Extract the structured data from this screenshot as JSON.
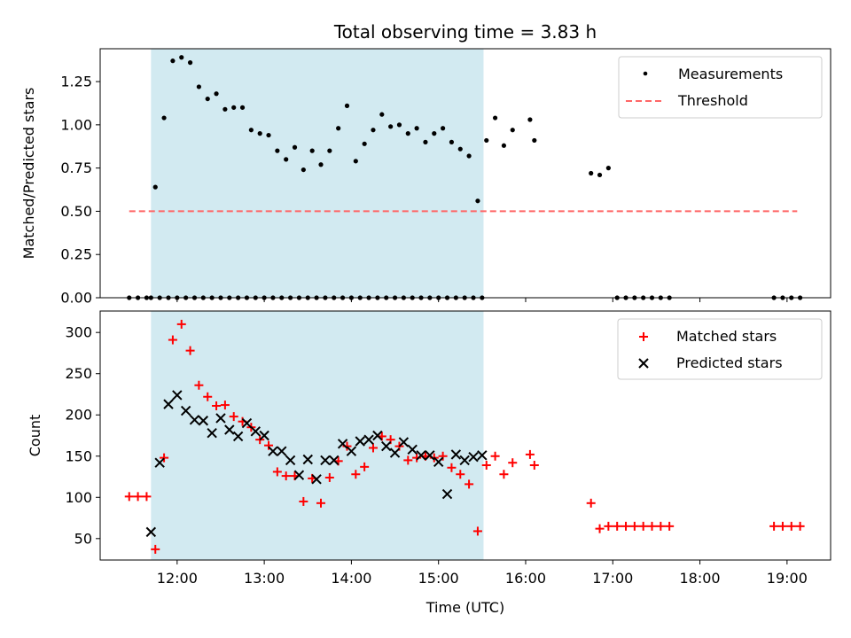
{
  "chart_data": {
    "type": "scatter",
    "title": "Total observing time = 3.83 h",
    "colors": {
      "span": "#add8e6",
      "measurements": "#000000",
      "threshold": "#ff6666",
      "matched": "#ff0000",
      "predicted": "#000000"
    },
    "shared_x": {
      "label": "Time (UTC)",
      "unit": "hours UTC",
      "range": [
        "11:07",
        "19:30"
      ],
      "ticks": [
        "12:00",
        "13:00",
        "14:00",
        "15:00",
        "16:00",
        "17:00",
        "18:00",
        "19:00"
      ],
      "highlight_span": [
        "11:42",
        "15:31"
      ]
    },
    "panels": [
      {
        "type": "scatter",
        "ylabel": "Matched/Predicted stars",
        "ylim": [
          0,
          1.44
        ],
        "yticks": [
          "0.00",
          "0.25",
          "0.50",
          "0.75",
          "1.00",
          "1.25"
        ],
        "legend_position": "upper right",
        "series": [
          {
            "name": "Measurements",
            "marker": "dot",
            "x": [
              "11:27",
              "11:33",
              "11:39",
              "11:45",
              "11:51",
              "11:57",
              "12:03",
              "12:09",
              "12:15",
              "12:21",
              "12:27",
              "12:33",
              "12:39",
              "12:45",
              "12:51",
              "12:57",
              "13:03",
              "13:09",
              "13:15",
              "13:21",
              "13:27",
              "13:33",
              "13:39",
              "13:45",
              "13:51",
              "13:57",
              "14:03",
              "14:09",
              "14:15",
              "14:21",
              "14:27",
              "14:33",
              "14:39",
              "14:45",
              "14:51",
              "14:57",
              "15:03",
              "15:09",
              "15:15",
              "15:21",
              "15:27",
              "15:33",
              "15:39",
              "15:45",
              "15:51",
              "16:03",
              "16:06",
              "16:45",
              "16:51",
              "16:57",
              "17:03",
              "17:09",
              "17:15",
              "17:21",
              "17:27",
              "17:33",
              "17:39",
              "18:51",
              "18:57",
              "19:03",
              "19:09",
              "11:42",
              "11:48",
              "11:54",
              "12:00",
              "12:06",
              "12:12",
              "12:18",
              "12:24",
              "12:30",
              "12:36",
              "12:42",
              "12:48",
              "12:54",
              "13:00",
              "13:06",
              "13:12",
              "13:18",
              "13:24",
              "13:30",
              "13:36",
              "13:42",
              "13:48",
              "13:54",
              "14:00",
              "14:06",
              "14:12",
              "14:18",
              "14:24",
              "14:30",
              "14:36",
              "14:42",
              "14:48",
              "14:54",
              "15:00",
              "15:06",
              "15:12",
              "15:18",
              "15:24",
              "15:30"
            ],
            "y": [
              0,
              0,
              0,
              0.64,
              1.04,
              1.37,
              1.39,
              1.36,
              1.22,
              1.15,
              1.18,
              1.09,
              1.1,
              1.1,
              0.97,
              0.95,
              0.94,
              0.85,
              0.8,
              0.87,
              0.74,
              0.85,
              0.77,
              0.85,
              0.98,
              1.11,
              0.79,
              0.89,
              0.97,
              1.06,
              0.99,
              1.0,
              0.95,
              0.98,
              0.9,
              0.95,
              0.98,
              0.9,
              0.86,
              0.82,
              0.56,
              0.91,
              1.04,
              0.88,
              0.97,
              1.03,
              0.91,
              0.72,
              0.71,
              0.75,
              0,
              0,
              0,
              0,
              0,
              0,
              0,
              0,
              0,
              0,
              0,
              0,
              0,
              0,
              0,
              0,
              0,
              0,
              0,
              0,
              0,
              0,
              0,
              0,
              0,
              0,
              0,
              0,
              0,
              0,
              0,
              0,
              0,
              0,
              0,
              0,
              0,
              0,
              0,
              0,
              0,
              0,
              0,
              0,
              0,
              0,
              0,
              0,
              0,
              0
            ]
          },
          {
            "name": "Threshold",
            "style": "dashed",
            "x": [
              "11:27",
              "19:07"
            ],
            "y": [
              0.5,
              0.5
            ]
          }
        ]
      },
      {
        "type": "scatter",
        "ylabel": "Count",
        "ylim": [
          24,
          326
        ],
        "yticks": [
          "50",
          "100",
          "150",
          "200",
          "250",
          "300"
        ],
        "legend_position": "upper right",
        "series": [
          {
            "name": "Matched stars",
            "marker": "plus",
            "x": [
              "11:27",
              "11:33",
              "11:39",
              "11:45",
              "11:51",
              "11:57",
              "12:03",
              "12:09",
              "12:15",
              "12:21",
              "12:27",
              "12:33",
              "12:39",
              "12:45",
              "12:51",
              "12:57",
              "13:03",
              "13:09",
              "13:15",
              "13:21",
              "13:27",
              "13:33",
              "13:39",
              "13:45",
              "13:51",
              "13:57",
              "14:03",
              "14:09",
              "14:15",
              "14:21",
              "14:27",
              "14:33",
              "14:39",
              "14:45",
              "14:51",
              "14:57",
              "15:03",
              "15:09",
              "15:15",
              "15:21",
              "15:27",
              "15:33",
              "15:39",
              "15:45",
              "15:51",
              "16:03",
              "16:06",
              "16:45",
              "16:51",
              "16:57",
              "17:03",
              "17:09",
              "17:15",
              "17:21",
              "17:27",
              "17:33",
              "17:39",
              "18:51",
              "18:57",
              "19:03",
              "19:09"
            ],
            "y": [
              101,
              101,
              101,
              37,
              148,
              291,
              310,
              278,
              236,
              222,
              211,
              212,
              198,
              192,
              185,
              170,
              163,
              131,
              126,
              126,
              95,
              123,
              93,
              124,
              144,
              162,
              128,
              137,
              160,
              174,
              170,
              162,
              145,
              148,
              150,
              148,
              150,
              136,
              128,
              116,
              59,
              139,
              150,
              128,
              142,
              152,
              139,
              93,
              62,
              65,
              65,
              65,
              65,
              65,
              65,
              65,
              65,
              65,
              65,
              65,
              65
            ]
          },
          {
            "name": "Predicted stars",
            "marker": "x",
            "x": [
              "11:42",
              "11:48",
              "11:54",
              "12:00",
              "12:06",
              "12:12",
              "12:18",
              "12:24",
              "12:30",
              "12:36",
              "12:42",
              "12:48",
              "12:54",
              "13:00",
              "13:06",
              "13:12",
              "13:18",
              "13:24",
              "13:30",
              "13:36",
              "13:42",
              "13:48",
              "13:54",
              "14:00",
              "14:06",
              "14:12",
              "14:18",
              "14:24",
              "14:30",
              "14:36",
              "14:42",
              "14:48",
              "14:54",
              "15:00",
              "15:06",
              "15:12",
              "15:18",
              "15:24",
              "15:30"
            ],
            "y": [
              58,
              142,
              213,
              224,
              205,
              194,
              193,
              178,
              196,
              182,
              174,
              190,
              180,
              175,
              156,
              156,
              145,
              127,
              146,
              122,
              145,
              145,
              165,
              156,
              168,
              170,
              175,
              162,
              154,
              167,
              158,
              151,
              151,
              143,
              104,
              152,
              145,
              149,
              151
            ]
          }
        ]
      }
    ]
  }
}
